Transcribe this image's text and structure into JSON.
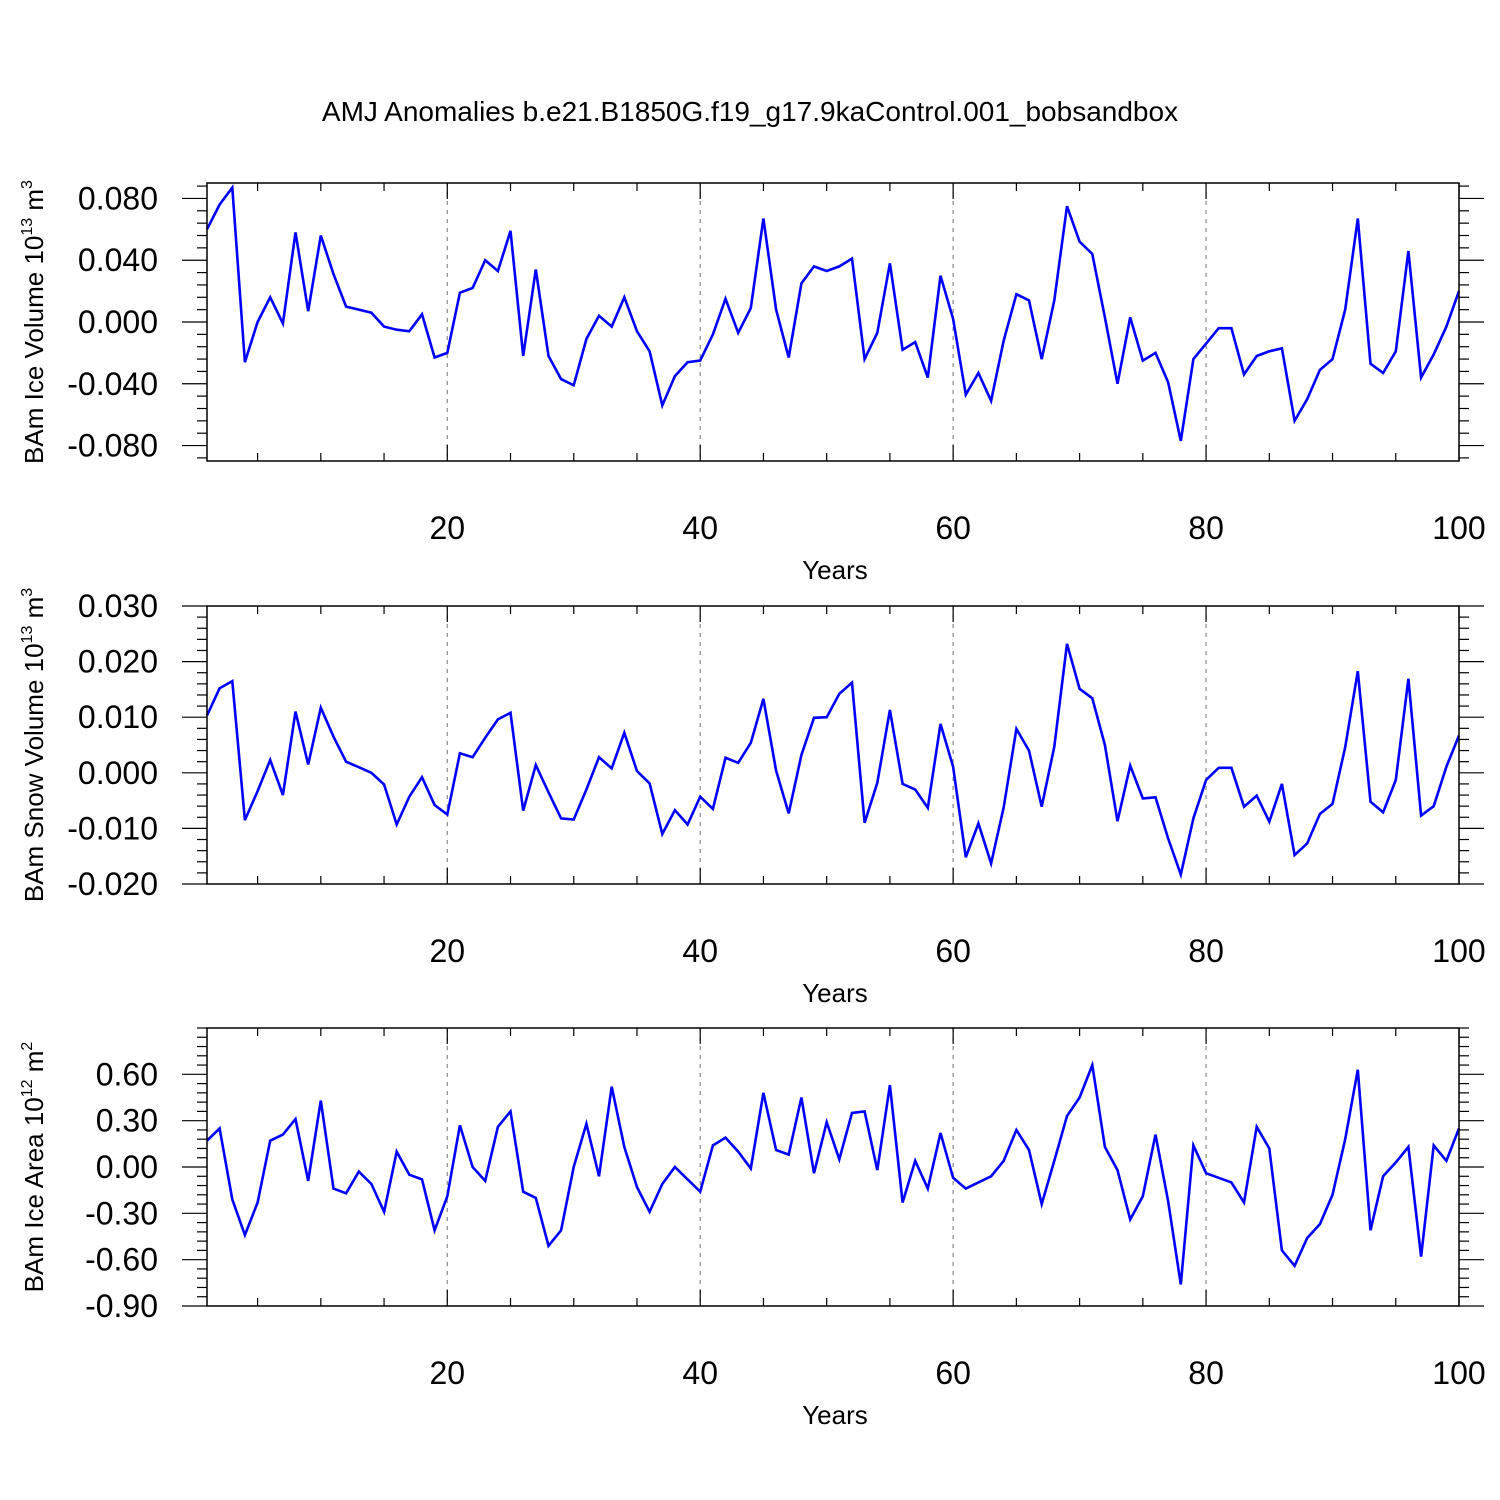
{
  "title": "AMJ Anomalies b.e21.B1850G.f19_g17.9kaControl.001_bobsandbox",
  "colors": {
    "series": "#0000ff",
    "frame": "#000000",
    "grid": "#888888"
  },
  "chart_data": [
    {
      "type": "line",
      "ylabel": "BAm Ice Volume 10",
      "ylabel_exp": "13",
      "ylabel_unit": " m",
      "ylabel_unit_exp": "3",
      "xlabel": "Years",
      "xlim": [
        1,
        100
      ],
      "ylim": [
        -0.09,
        0.09
      ],
      "xticks": [
        "20",
        "40",
        "60",
        "80",
        "100"
      ],
      "yticks": [
        "0.080",
        "0.040",
        "0.000",
        "-0.040",
        "-0.080"
      ],
      "grid": "x-major dashed",
      "x_start": 1,
      "values": [
        0.06,
        0.076,
        0.087,
        -0.026,
        0.0,
        0.016,
        -0.001,
        0.058,
        0.007,
        0.056,
        0.031,
        0.01,
        0.008,
        0.006,
        -0.003,
        -0.005,
        -0.006,
        0.005,
        -0.023,
        -0.02,
        0.019,
        0.022,
        0.04,
        0.033,
        0.059,
        -0.022,
        0.034,
        -0.022,
        -0.037,
        -0.041,
        -0.011,
        0.004,
        -0.003,
        0.016,
        -0.006,
        -0.019,
        -0.054,
        -0.035,
        -0.026,
        -0.025,
        -0.008,
        0.015,
        -0.007,
        0.009,
        0.067,
        0.008,
        -0.023,
        0.025,
        0.036,
        0.033,
        0.036,
        0.041,
        -0.024,
        -0.007,
        0.038,
        -0.018,
        -0.013,
        -0.036,
        0.03,
        0.002,
        -0.047,
        -0.033,
        -0.051,
        -0.012,
        0.018,
        0.014,
        -0.024,
        0.014,
        0.075,
        0.052,
        0.044,
        0.003,
        -0.04,
        0.003,
        -0.025,
        -0.02,
        -0.039,
        -0.077,
        -0.024,
        -0.014,
        -0.004,
        -0.004,
        -0.034,
        -0.022,
        -0.019,
        -0.017,
        -0.064,
        -0.05,
        -0.031,
        -0.024,
        0.008,
        0.067,
        -0.027,
        -0.033,
        -0.019,
        0.046,
        -0.036,
        -0.021,
        -0.003,
        0.02
      ]
    },
    {
      "type": "line",
      "ylabel": "BAm Snow Volume 10",
      "ylabel_exp": "13",
      "ylabel_unit": " m",
      "ylabel_unit_exp": "3",
      "xlabel": "Years",
      "xlim": [
        1,
        100
      ],
      "ylim": [
        -0.02,
        0.03
      ],
      "xticks": [
        "20",
        "40",
        "60",
        "80",
        "100"
      ],
      "yticks": [
        "0.030",
        "0.020",
        "0.010",
        "0.000",
        "-0.010",
        "-0.020"
      ],
      "grid": "x-major dashed",
      "x_start": 1,
      "values": [
        0.0103,
        0.0152,
        0.0165,
        -0.0085,
        -0.0033,
        0.0023,
        -0.004,
        0.011,
        0.0015,
        0.0117,
        0.0065,
        0.002,
        0.001,
        0.0,
        -0.0021,
        -0.0093,
        -0.0043,
        -0.0008,
        -0.0058,
        -0.0075,
        0.0035,
        0.0028,
        0.0063,
        0.0096,
        0.0108,
        -0.0068,
        0.0014,
        -0.0035,
        -0.0082,
        -0.0084,
        -0.003,
        0.0028,
        0.0008,
        0.0072,
        0.0003,
        -0.0019,
        -0.011,
        -0.0067,
        -0.0093,
        -0.0043,
        -0.0065,
        0.0027,
        0.0018,
        0.0054,
        0.0133,
        0.0004,
        -0.0073,
        0.0032,
        0.0099,
        0.01,
        0.0142,
        0.0162,
        -0.009,
        -0.0018,
        0.0113,
        -0.002,
        -0.003,
        -0.0063,
        0.0088,
        0.0011,
        -0.0152,
        -0.0091,
        -0.0163,
        -0.0062,
        0.0079,
        0.004,
        -0.0061,
        0.0047,
        0.0232,
        0.0151,
        0.0134,
        0.005,
        -0.0087,
        0.0013,
        -0.0046,
        -0.0044,
        -0.0118,
        -0.0183,
        -0.0082,
        -0.0013,
        0.0009,
        0.0009,
        -0.0061,
        -0.0041,
        -0.0088,
        -0.002,
        -0.0148,
        -0.0127,
        -0.0074,
        -0.0056,
        0.0046,
        0.0183,
        -0.0052,
        -0.0071,
        -0.0013,
        0.0169,
        -0.0077,
        -0.006,
        0.0011,
        0.0067
      ]
    },
    {
      "type": "line",
      "ylabel": "BAm Ice Area 10",
      "ylabel_exp": "12",
      "ylabel_unit": " m",
      "ylabel_unit_exp": "2",
      "xlabel": "Years",
      "xlim": [
        1,
        100
      ],
      "ylim": [
        -0.9,
        0.9
      ],
      "xticks": [
        "20",
        "40",
        "60",
        "80",
        "100"
      ],
      "yticks": [
        "0.60",
        "0.30",
        "0.00",
        "-0.30",
        "-0.60",
        "-0.90"
      ],
      "grid": "x-major dashed",
      "x_start": 1,
      "values": [
        0.17,
        0.25,
        -0.21,
        -0.44,
        -0.23,
        0.17,
        0.21,
        0.31,
        -0.09,
        0.43,
        -0.14,
        -0.17,
        -0.03,
        -0.11,
        -0.29,
        0.1,
        -0.05,
        -0.08,
        -0.41,
        -0.19,
        0.27,
        0.0,
        -0.09,
        0.26,
        0.36,
        -0.16,
        -0.2,
        -0.51,
        -0.41,
        0.0,
        0.28,
        -0.06,
        0.52,
        0.13,
        -0.13,
        -0.29,
        -0.11,
        0.0,
        -0.08,
        -0.16,
        0.14,
        0.19,
        0.1,
        -0.01,
        0.48,
        0.11,
        0.08,
        0.45,
        -0.04,
        0.29,
        0.05,
        0.35,
        0.36,
        -0.02,
        0.53,
        -0.23,
        0.04,
        -0.14,
        0.22,
        -0.07,
        -0.14,
        -0.1,
        -0.06,
        0.04,
        0.24,
        0.11,
        -0.24,
        0.04,
        0.33,
        0.45,
        0.66,
        0.13,
        -0.02,
        -0.34,
        -0.19,
        0.21,
        -0.22,
        -0.76,
        0.14,
        -0.04,
        -0.07,
        -0.1,
        -0.23,
        0.26,
        0.12,
        -0.54,
        -0.64,
        -0.46,
        -0.37,
        -0.18,
        0.18,
        0.63,
        -0.41,
        -0.06,
        0.03,
        0.13,
        -0.58,
        0.14,
        0.04,
        0.25
      ]
    }
  ]
}
